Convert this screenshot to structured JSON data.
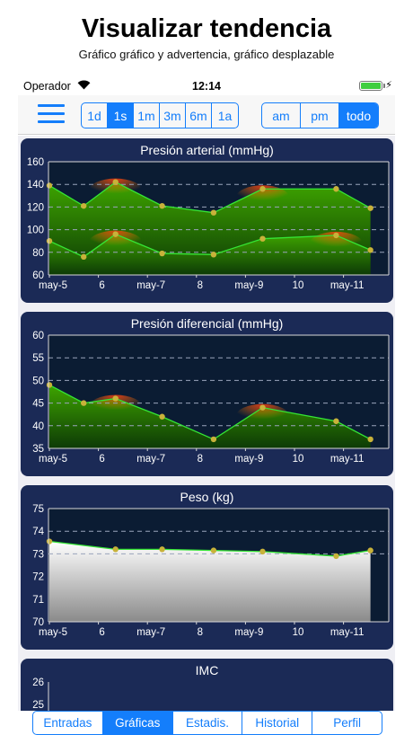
{
  "promo": {
    "title": "Visualizar tendencia",
    "subtitle": "Gráfico gráfico y advertencia, gráfico desplazable"
  },
  "status": {
    "carrier": "Operador",
    "time": "12:14",
    "wifi_icon": "wifi-icon",
    "battery_icon": "battery-icon"
  },
  "toolbar": {
    "menu_icon": "hamburger-menu-icon",
    "ranges": [
      {
        "label": "1d",
        "selected": false
      },
      {
        "label": "1s",
        "selected": true
      },
      {
        "label": "1m",
        "selected": false
      },
      {
        "label": "3m",
        "selected": false
      },
      {
        "label": "6m",
        "selected": false
      },
      {
        "label": "1a",
        "selected": false
      }
    ],
    "times": [
      {
        "label": "am",
        "selected": false
      },
      {
        "label": "pm",
        "selected": false
      },
      {
        "label": "todo",
        "selected": true
      }
    ]
  },
  "colors": {
    "accent": "#147efb",
    "card_bg": "#1b2a56",
    "line": "#35e635",
    "point": "#c8b23a"
  },
  "chart_data": [
    {
      "type": "area",
      "title": "Presión arterial (mmHg)",
      "x_tick_labels": [
        "may-5",
        "6",
        "may-7",
        "8",
        "may-9",
        "10",
        "may-11"
      ],
      "ylim": [
        60,
        160
      ],
      "y_ticks": [
        60,
        80,
        100,
        120,
        140,
        160
      ],
      "dashed_lines": [
        140,
        120,
        100,
        80
      ],
      "x": [
        0,
        0.7,
        1.35,
        2.3,
        3.35,
        4.35,
        5.85,
        6.55
      ],
      "series": [
        {
          "values": [
            139,
            121,
            142,
            121,
            115,
            136,
            136,
            119
          ]
        },
        {
          "values": [
            90,
            76,
            96,
            79,
            78,
            92,
            95,
            82
          ]
        }
      ]
    },
    {
      "type": "area",
      "title": "Presión diferencial (mmHg)",
      "x_tick_labels": [
        "may-5",
        "6",
        "may-7",
        "8",
        "may-9",
        "10",
        "may-11"
      ],
      "ylim": [
        35,
        60
      ],
      "y_ticks": [
        35,
        40,
        45,
        50,
        55,
        60
      ],
      "dashed_lines": [
        55,
        50,
        45,
        40
      ],
      "x": [
        0,
        0.7,
        1.35,
        2.3,
        3.35,
        4.35,
        5.85,
        6.55
      ],
      "series": [
        {
          "values": [
            49,
            45,
            46,
            42,
            37,
            44,
            41,
            37
          ]
        }
      ]
    },
    {
      "type": "area",
      "title": "Peso (kg)",
      "x_tick_labels": [
        "may-5",
        "6",
        "may-7",
        "8",
        "may-9",
        "10",
        "may-11"
      ],
      "ylim": [
        70,
        75
      ],
      "y_ticks": [
        70,
        71,
        72,
        73,
        74,
        75
      ],
      "dashed_lines": [
        74,
        73
      ],
      "x": [
        0,
        1.35,
        2.3,
        3.35,
        4.35,
        5.85,
        6.55
      ],
      "series": [
        {
          "values": [
            73.55,
            73.2,
            73.2,
            73.15,
            73.1,
            72.9,
            73.15
          ]
        }
      ]
    },
    {
      "type": "area",
      "title": "IMC",
      "y_ticks": [
        26,
        25
      ]
    }
  ],
  "tabs": [
    {
      "label": "Entradas",
      "selected": false
    },
    {
      "label": "Gráficas",
      "selected": true
    },
    {
      "label": "Estadis.",
      "selected": false
    },
    {
      "label": "Historial",
      "selected": false
    },
    {
      "label": "Perfil",
      "selected": false
    }
  ]
}
